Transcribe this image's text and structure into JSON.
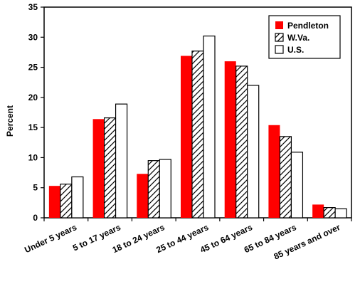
{
  "chart_data": {
    "type": "bar",
    "title": "",
    "xlabel": "",
    "ylabel": "Percent",
    "ylim": [
      0,
      35
    ],
    "yticks": [
      0,
      5,
      10,
      15,
      20,
      25,
      30,
      35
    ],
    "grid": false,
    "legend_position": "top-right",
    "categories": [
      "Under 5 years",
      "5 to 17 years",
      "18 to 24 years",
      "25 to 44 years",
      "45 to 64 years",
      "65 to 84 years",
      "85 years and over"
    ],
    "series": [
      {
        "name": "Pendleton",
        "color": "#ff0000",
        "fill": "solid",
        "values": [
          5.3,
          16.4,
          7.3,
          26.9,
          26.0,
          15.4,
          2.2
        ]
      },
      {
        "name": "W.Va.",
        "color": "#ffffff",
        "fill": "hatched",
        "values": [
          5.6,
          16.6,
          9.5,
          27.7,
          25.2,
          13.5,
          1.7
        ]
      },
      {
        "name": "U.S.",
        "color": "#ffffff",
        "fill": "solid",
        "values": [
          6.8,
          18.9,
          9.7,
          30.2,
          22.0,
          10.9,
          1.5
        ]
      }
    ]
  }
}
